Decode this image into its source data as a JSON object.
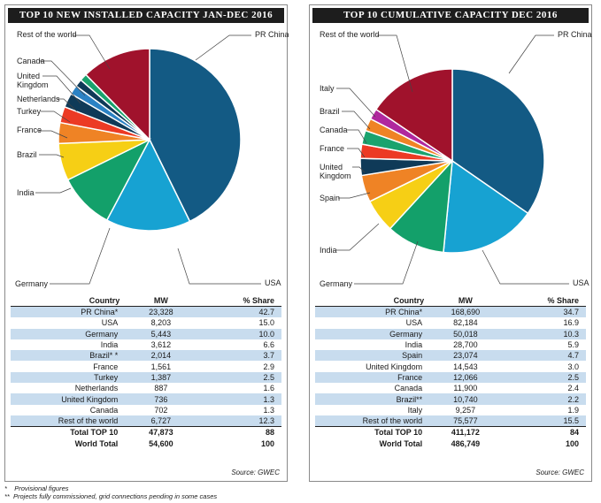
{
  "footnotes": [
    {
      "mark": "*",
      "text": "Provisional figures"
    },
    {
      "mark": "**",
      "text": "Projects fully commissioned, grid connections pending in some cases"
    }
  ],
  "colors": {
    "PR China": "#135a84",
    "USA": "#17a2d2",
    "Germany": "#13a06a",
    "India": "#f6cf15",
    "Brazil": "#ef8325",
    "France": "#ec3a24",
    "Spain": "#ef8325",
    "Turkey": "#0f3a58",
    "United Kingdom": "#0f3a58",
    "Netherlands": "#2b82c4",
    "Canada": "#1aa36e",
    "Italy": "#b0289e",
    "Rest of the world": "#a0122c",
    "band": "#c8dcee"
  },
  "chart_data": [
    {
      "type": "pie",
      "title": "TOP 10 NEW INSTALLED CAPACITY JAN-DEC 2016",
      "unit": "MW",
      "slices": [
        {
          "label": "PR China",
          "value": 23328,
          "share": 42.7
        },
        {
          "label": "USA",
          "value": 8203,
          "share": 15.0
        },
        {
          "label": "Germany",
          "value": 5443,
          "share": 10.0
        },
        {
          "label": "India",
          "value": 3612,
          "share": 6.6
        },
        {
          "label": "Brazil",
          "value": 2014,
          "share": 3.7
        },
        {
          "label": "France",
          "value": 1561,
          "share": 2.9
        },
        {
          "label": "Turkey",
          "value": 1387,
          "share": 2.5
        },
        {
          "label": "Netherlands",
          "value": 887,
          "share": 1.6
        },
        {
          "label": "United Kingdom",
          "value": 736,
          "share": 1.3
        },
        {
          "label": "Canada",
          "value": 702,
          "share": 1.3
        },
        {
          "label": "Rest of the world",
          "value": 6727,
          "share": 12.3
        }
      ],
      "table": {
        "headers": [
          "Country",
          "MW",
          "% Share"
        ],
        "rows": [
          [
            "PR China*",
            "23,328",
            "42.7"
          ],
          [
            "USA",
            "8,203",
            "15.0"
          ],
          [
            "Germany",
            "5,443",
            "10.0"
          ],
          [
            "India",
            "3,612",
            "6.6"
          ],
          [
            "Brazil* *",
            "2,014",
            "3.7"
          ],
          [
            "France",
            "1,561",
            "2.9"
          ],
          [
            "Turkey",
            "1,387",
            "2.5"
          ],
          [
            "Netherlands",
            "887",
            "1.6"
          ],
          [
            "United Kingdom",
            "736",
            "1.3"
          ],
          [
            "Canada",
            "702",
            "1.3"
          ],
          [
            "Rest of the world",
            "6,727",
            "12.3"
          ]
        ],
        "totals": [
          [
            "Total TOP 10",
            "47,873",
            "88"
          ],
          [
            "World Total",
            "54,600",
            "100"
          ]
        ]
      },
      "source": "Source: GWEC"
    },
    {
      "type": "pie",
      "title": "TOP 10 CUMULATIVE CAPACITY DEC 2016",
      "unit": "MW",
      "slices": [
        {
          "label": "PR China",
          "value": 168690,
          "share": 34.7
        },
        {
          "label": "USA",
          "value": 82184,
          "share": 16.9
        },
        {
          "label": "Germany",
          "value": 50018,
          "share": 10.3
        },
        {
          "label": "India",
          "value": 28700,
          "share": 5.9
        },
        {
          "label": "Spain",
          "value": 23074,
          "share": 4.7
        },
        {
          "label": "United Kingdom",
          "value": 14543,
          "share": 3.0
        },
        {
          "label": "France",
          "value": 12066,
          "share": 2.5
        },
        {
          "label": "Canada",
          "value": 11900,
          "share": 2.4
        },
        {
          "label": "Brazil",
          "value": 10740,
          "share": 2.2
        },
        {
          "label": "Italy",
          "value": 9257,
          "share": 1.9
        },
        {
          "label": "Rest of the world",
          "value": 75577,
          "share": 15.5
        }
      ],
      "table": {
        "headers": [
          "Country",
          "MW",
          "% Share"
        ],
        "rows": [
          [
            "PR China*",
            "168,690",
            "34.7"
          ],
          [
            "USA",
            "82,184",
            "16.9"
          ],
          [
            "Germany",
            "50,018",
            "10.3"
          ],
          [
            "India",
            "28,700",
            "5.9"
          ],
          [
            "Spain",
            "23,074",
            "4.7"
          ],
          [
            "United Kingdom",
            "14,543",
            "3.0"
          ],
          [
            "France",
            "12,066",
            "2.5"
          ],
          [
            "Canada",
            "11,900",
            "2.4"
          ],
          [
            "Brazil**",
            "10,740",
            "2.2"
          ],
          [
            "Italy",
            "9,257",
            "1.9"
          ],
          [
            "Rest of the world",
            "75,577",
            "15.5"
          ]
        ],
        "totals": [
          [
            "Total TOP 10",
            "411,172",
            "84"
          ],
          [
            "World Total",
            "486,749",
            "100"
          ]
        ]
      },
      "source": "Source: GWEC"
    }
  ]
}
